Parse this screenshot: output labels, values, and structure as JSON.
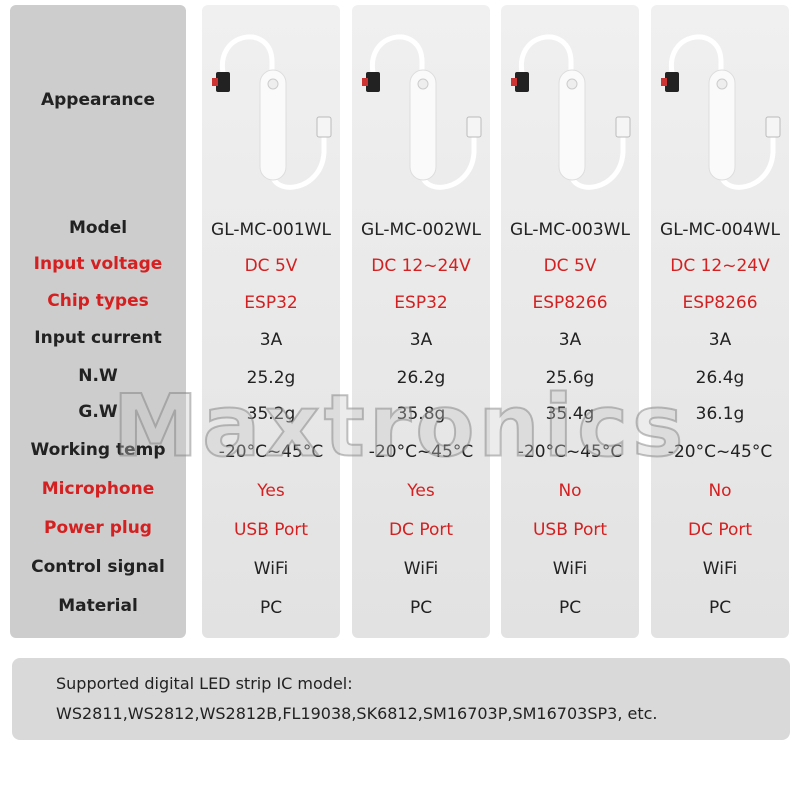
{
  "header_label": "Appearance",
  "table": {
    "rows": [
      {
        "label": "Model",
        "color": "#222222",
        "cells": [
          "GL-MC-001WL",
          "GL-MC-002WL",
          "GL-MC-003WL",
          "GL-MC-004WL"
        ]
      },
      {
        "label": "Input voltage",
        "color": "#d42020",
        "cells": [
          "DC 5V",
          "DC 12~24V",
          "DC 5V",
          "DC 12~24V"
        ]
      },
      {
        "label": "Chip types",
        "color": "#d42020",
        "cells": [
          "ESP32",
          "ESP32",
          "ESP8266",
          "ESP8266"
        ]
      },
      {
        "label": "Input current",
        "color": "#222222",
        "cells": [
          "3A",
          "3A",
          "3A",
          "3A"
        ]
      },
      {
        "label": "N.W",
        "color": "#222222",
        "cells": [
          "25.2g",
          "26.2g",
          "25.6g",
          "26.4g"
        ]
      },
      {
        "label": "G.W",
        "color": "#222222",
        "cells": [
          "35.2g",
          "35.8g",
          "35.4g",
          "36.1g"
        ]
      },
      {
        "label": "Working temp",
        "color": "#222222",
        "cells": [
          "-20°C~45°C",
          "-20°C~45°C",
          "-20°C~45°C",
          "-20°C~45°C"
        ]
      },
      {
        "label": "Microphone",
        "color": "#d42020",
        "cells": [
          "Yes",
          "Yes",
          "No",
          "No"
        ]
      },
      {
        "label": "Power plug",
        "color": "#d42020",
        "cells": [
          "USB Port",
          "DC Port",
          "USB Port",
          "DC Port"
        ]
      },
      {
        "label": "Control signal",
        "color": "#222222",
        "cells": [
          "WiFi",
          "WiFi",
          "WiFi",
          "WiFi"
        ]
      },
      {
        "label": "Material",
        "color": "#222222",
        "cells": [
          "PC",
          "PC",
          "PC",
          "PC"
        ]
      }
    ]
  },
  "footer": {
    "title": "Supported digital LED strip IC model:",
    "models": "WS2811,WS2812,WS2812B,FL19038,SK6812,SM16703P,SM16703SP3, etc."
  },
  "watermark": "Maxtronics"
}
